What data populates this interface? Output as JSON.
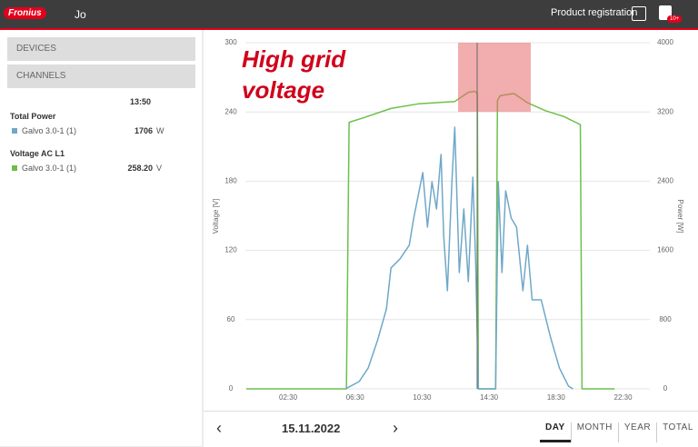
{
  "header": {
    "logo": "Fronius",
    "user": "Jo",
    "product_registration": "Product registration",
    "badge": "10+"
  },
  "sidebar": {
    "devices": "DEVICES",
    "channels": "CHANNELS",
    "time": "13:50",
    "groups": [
      {
        "title": "Total Power",
        "device": "Galvo 3.0-1 (1)",
        "value": "1706",
        "unit": "W",
        "color": "#6fa8c8"
      },
      {
        "title": "Voltage AC L1",
        "device": "Galvo 3.0-1 (1)",
        "value": "258.20",
        "unit": "V",
        "color": "#6cc04a"
      }
    ]
  },
  "chart_data": {
    "type": "line",
    "annotation": [
      "High grid",
      "voltage"
    ],
    "y_label": "Voltage [V]",
    "y2_label": "Power [W]",
    "xlim": [
      -1.14,
      24.1
    ],
    "xticks": [
      {
        "value": 2.5,
        "label": "02:30"
      },
      {
        "value": 6.5,
        "label": "06:30"
      },
      {
        "value": 10.5,
        "label": "10:30"
      },
      {
        "value": 14.5,
        "label": "14:30"
      },
      {
        "value": 18.5,
        "label": "18:30"
      },
      {
        "value": 22.5,
        "label": "22:30"
      }
    ],
    "ylim": [
      0,
      300
    ],
    "yticks": [
      0,
      60,
      120,
      180,
      240,
      300
    ],
    "y2lim": [
      0,
      4000
    ],
    "y2ticks": [
      0,
      800,
      1600,
      2400,
      3200,
      4000
    ],
    "grid": true,
    "series": [
      {
        "name": "Voltage AC L1",
        "color": "#6cc04a",
        "axis": "y",
        "x": [
          0,
          5.98,
          6.14,
          7.01,
          8.64,
          10.27,
          12.45,
          13.26,
          13.64,
          13.8,
          13.86,
          14.89,
          15.0,
          15.16,
          15.98,
          16.79,
          17.88,
          18.97,
          19.95,
          20.05,
          22
        ],
        "values": [
          0,
          0,
          231,
          235,
          243,
          247,
          249,
          257,
          258,
          256,
          0,
          0,
          250,
          254,
          256,
          248,
          241,
          236,
          229,
          0,
          0
        ]
      },
      {
        "name": "Total Power",
        "color": "#6fa8c8",
        "axis": "y2",
        "x": [
          5.92,
          6.74,
          7.28,
          7.83,
          8.37,
          8.64,
          9.18,
          9.73,
          10.0,
          10.27,
          10.54,
          10.82,
          11.09,
          11.36,
          11.63,
          11.79,
          12.01,
          12.28,
          12.45,
          12.72,
          12.99,
          13.26,
          13.53,
          13.7,
          13.86,
          14.89,
          15.05,
          15.27,
          15.49,
          15.82,
          16.14,
          16.52,
          16.79,
          17.07,
          17.61,
          18.15,
          18.7,
          19.24,
          19.51
        ],
        "values": [
          0,
          84,
          241,
          556,
          924,
          1397,
          1502,
          1659,
          1974,
          2237,
          2499,
          1869,
          2394,
          2079,
          2709,
          1764,
          1134,
          2394,
          3024,
          1344,
          2079,
          1239,
          2446,
          1449,
          0,
          0,
          2394,
          1344,
          2289,
          1974,
          1869,
          1134,
          1659,
          1029,
          1029,
          609,
          241,
          32,
          0
        ]
      }
    ]
  },
  "footer": {
    "date": "15.11.2022",
    "tabs": [
      "DAY",
      "MONTH",
      "YEAR",
      "TOTAL"
    ]
  }
}
